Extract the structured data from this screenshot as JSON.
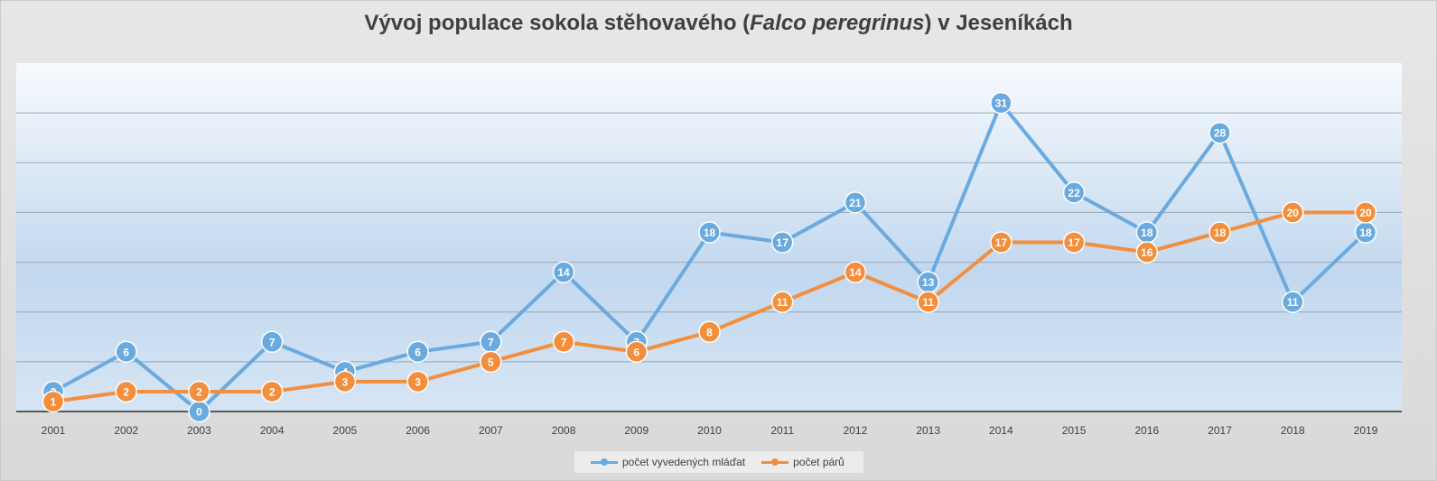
{
  "chart_data": {
    "type": "line",
    "title_parts": [
      "Vývoj populace sokola stěhovavého (",
      "Falco peregrinus",
      ") v Jeseníkách"
    ],
    "categories": [
      "2001",
      "2002",
      "2003",
      "2004",
      "2005",
      "2006",
      "2007",
      "2008",
      "2009",
      "2010",
      "2011",
      "2012",
      "2013",
      "2014",
      "2015",
      "2016",
      "2017",
      "2018",
      "2019"
    ],
    "series": [
      {
        "name": "počet vyvedených mláďat",
        "color": "#6aaadf",
        "values": [
          2,
          6,
          0,
          7,
          4,
          6,
          7,
          14,
          7,
          18,
          17,
          21,
          13,
          31,
          22,
          18,
          28,
          11,
          18
        ]
      },
      {
        "name": "počet párů",
        "color": "#f28e3c",
        "values": [
          1,
          2,
          2,
          2,
          3,
          3,
          5,
          7,
          6,
          8,
          11,
          14,
          11,
          17,
          17,
          16,
          18,
          20,
          20
        ]
      }
    ],
    "ylim": [
      0,
      35
    ],
    "grid": true,
    "y_tick_labels_shown": false,
    "data_labels": true,
    "legend_position": "bottom"
  }
}
